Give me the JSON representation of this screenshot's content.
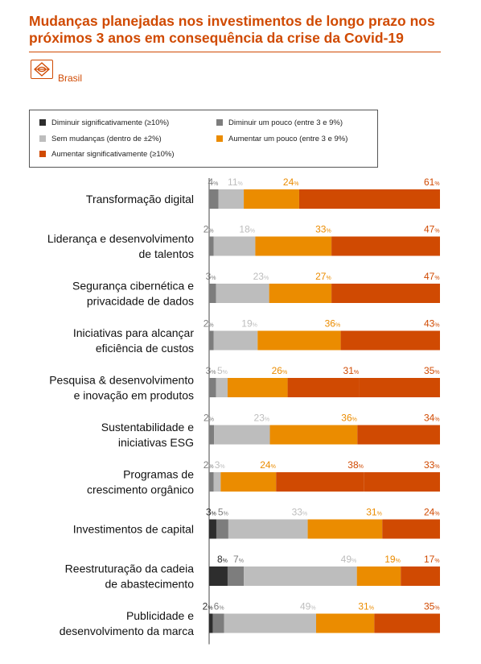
{
  "title": "Mudanças planejadas nos investimentos de longo prazo nos próximos 3 anos em consequência da crise da Covid-19",
  "region_icon": "region-badge-icon",
  "region": "Brasil",
  "colors": {
    "diminuir_sig": "#2d2d2d",
    "diminuir_pouco": "#7d7d7d",
    "sem_mudancas": "#bdbdbd",
    "aumentar_pouco": "#eb8c00",
    "aumentar_sig": "#d04a02",
    "accent": "#d04a02"
  },
  "chart_data": {
    "type": "bar",
    "stacked": true,
    "orientation": "horizontal",
    "unit_suffix": "%",
    "legend": [
      {
        "key": "diminuir_sig",
        "label": "Diminuir significativamente (≥10%)"
      },
      {
        "key": "diminuir_pouco",
        "label": "Diminuir um pouco (entre 3 e 9%)"
      },
      {
        "key": "sem_mudancas",
        "label": "Sem mudanças (dentro de ±2%)"
      },
      {
        "key": "aumentar_pouco",
        "label": "Aumentar um pouco (entre 3 e 9%)"
      },
      {
        "key": "aumentar_sig",
        "label": "Aumentar significativamente (≥10%)"
      }
    ],
    "categories": [
      [
        "Transformação digital"
      ],
      [
        "Liderança e desenvolvimento",
        "de talentos"
      ],
      [
        "Segurança cibernética e",
        "privacidade de dados"
      ],
      [
        "Iniciativas para alcançar",
        "eficiência de custos"
      ],
      [
        "Pesquisa & desenvolvimento",
        "e inovação em produtos"
      ],
      [
        "Sustentabilidade e",
        "iniciativas ESG"
      ],
      [
        "Programas de",
        "crescimento orgânico"
      ],
      [
        "Investimentos de capital"
      ],
      [
        "Reestruturação da cadeia",
        "de abastecimento"
      ],
      [
        "Publicidade e",
        "desenvolvimento da marca"
      ]
    ],
    "series": [
      {
        "key": "diminuir_sig",
        "name": "Diminuir significativamente (≥10%)",
        "values": [
          null,
          null,
          null,
          null,
          null,
          null,
          null,
          3,
          8,
          2
        ]
      },
      {
        "key": "diminuir_pouco",
        "name": "Diminuir um pouco (entre 3 e 9%)",
        "values": [
          4,
          2,
          3,
          2,
          3,
          2,
          2,
          5,
          7,
          6
        ]
      },
      {
        "key": "sem_mudancas",
        "name": "Sem mudanças (dentro de ±2%)",
        "values": [
          11,
          18,
          23,
          19,
          5,
          23,
          3,
          33,
          49,
          49
        ]
      },
      {
        "key": "aumentar_pouco",
        "name": "Aumentar um pouco (entre 3 e 9%)",
        "values": [
          24,
          33,
          27,
          36,
          26,
          36,
          24,
          31,
          19,
          31
        ]
      },
      {
        "key": "aumentar_sig",
        "name": "Aumentar significativamente (≥10%)",
        "values": [
          61,
          47,
          47,
          43,
          31,
          34,
          38,
          24,
          17,
          35
        ]
      },
      {
        "key": "extra",
        "name": "",
        "values": [
          null,
          null,
          null,
          null,
          35,
          null,
          33,
          null,
          null,
          null
        ]
      }
    ]
  }
}
